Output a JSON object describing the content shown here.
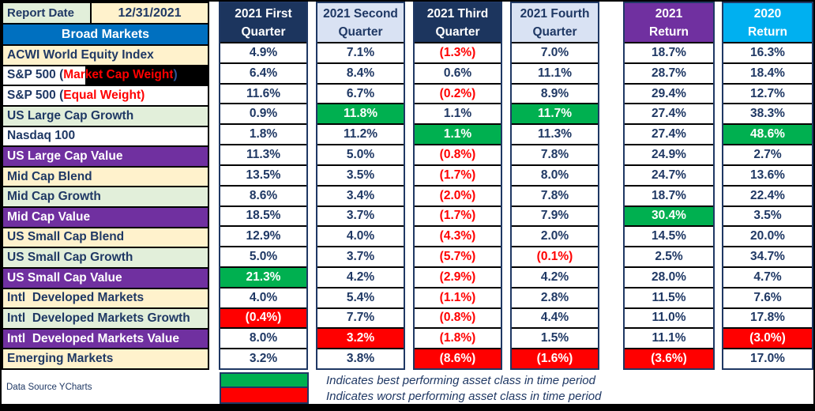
{
  "colors": {
    "text_navy": "#1F3864",
    "negative_red": "#FF0000",
    "best_green": "#00B050",
    "worst_red": "#FF0000",
    "header_navy": "#1C355E",
    "header_lightblue": "#D9E2F3",
    "purple": "#7030A0",
    "cyan": "#00B0F0",
    "section_blue": "#0070C0",
    "cream": "#FFF2CC",
    "light_green": "#E2EFDA",
    "white": "#FFFFFF",
    "black": "#000000"
  },
  "header": {
    "report_date_label": "Report Date",
    "report_date_value": "12/31/2021",
    "section_title": "Broad Markets"
  },
  "columns": [
    {
      "id": "q1-2021",
      "label": "2021 First\nQuarter",
      "style": "navy"
    },
    {
      "id": "q2-2021",
      "label": "2021 Second\nQuarter",
      "style": "lightblue"
    },
    {
      "id": "q3-2021",
      "label": "2021 Third\nQuarter",
      "style": "navy"
    },
    {
      "id": "q4-2021",
      "label": "2021 Fourth\nQuarter",
      "style": "lightblue"
    },
    {
      "id": "return-2021",
      "label": "2021\nReturn",
      "style": "purple"
    },
    {
      "id": "return-2020",
      "label": "2020\nReturn",
      "style": "cyan"
    }
  ],
  "rows": [
    {
      "row_style": "cream",
      "label": [
        {
          "text": "ACWI World Equity Index"
        }
      ],
      "cells": [
        {
          "t": "4.9%",
          "s": "n"
        },
        {
          "t": "7.1%",
          "s": "n"
        },
        {
          "t": "(1.3%)",
          "s": "neg"
        },
        {
          "t": "7.0%",
          "s": "n"
        },
        {
          "t": "18.7%",
          "s": "n"
        },
        {
          "t": "16.3%",
          "s": "n"
        }
      ]
    },
    {
      "row_style": "white",
      "label": [
        {
          "text": "S&P 500 ("
        },
        {
          "text": "Mar",
          "color": "#FF0000"
        },
        {
          "text": "ket Cap Weight",
          "color": "#FF0000",
          "bg": "#000000"
        },
        {
          "text": ")",
          "color": "#2F5597",
          "bg": "#000000",
          "fill": true
        }
      ],
      "cells": [
        {
          "t": "6.4%",
          "s": "n"
        },
        {
          "t": "8.4%",
          "s": "n"
        },
        {
          "t": "0.6%",
          "s": "n"
        },
        {
          "t": "11.1%",
          "s": "n"
        },
        {
          "t": "28.7%",
          "s": "n"
        },
        {
          "t": "18.4%",
          "s": "n"
        }
      ]
    },
    {
      "row_style": "white",
      "label": [
        {
          "text": "S&P 500 ("
        },
        {
          "text": "Equal Weight)",
          "color": "#FF0000"
        }
      ],
      "cells": [
        {
          "t": "11.6%",
          "s": "n"
        },
        {
          "t": "6.7%",
          "s": "n"
        },
        {
          "t": "(0.2%)",
          "s": "neg"
        },
        {
          "t": "8.9%",
          "s": "n"
        },
        {
          "t": "29.4%",
          "s": "n"
        },
        {
          "t": "12.7%",
          "s": "n"
        }
      ]
    },
    {
      "row_style": "green",
      "label": [
        {
          "text": "US Large Cap Growth"
        }
      ],
      "cells": [
        {
          "t": "0.9%",
          "s": "n"
        },
        {
          "t": "11.8%",
          "s": "best"
        },
        {
          "t": "1.1%",
          "s": "n"
        },
        {
          "t": "11.7%",
          "s": "best"
        },
        {
          "t": "27.4%",
          "s": "n"
        },
        {
          "t": "38.3%",
          "s": "n"
        }
      ]
    },
    {
      "row_style": "white",
      "label": [
        {
          "text": "Nasdaq 100"
        }
      ],
      "cells": [
        {
          "t": "1.8%",
          "s": "n"
        },
        {
          "t": "11.2%",
          "s": "n"
        },
        {
          "t": "1.1%",
          "s": "best"
        },
        {
          "t": "11.3%",
          "s": "n"
        },
        {
          "t": "27.4%",
          "s": "n"
        },
        {
          "t": "48.6%",
          "s": "best"
        }
      ]
    },
    {
      "row_style": "purple",
      "label": [
        {
          "text": "US Large Cap Value"
        }
      ],
      "cells": [
        {
          "t": "11.3%",
          "s": "n"
        },
        {
          "t": "5.0%",
          "s": "n"
        },
        {
          "t": "(0.8%)",
          "s": "neg"
        },
        {
          "t": "7.8%",
          "s": "n"
        },
        {
          "t": "24.9%",
          "s": "n"
        },
        {
          "t": "2.7%",
          "s": "n"
        }
      ]
    },
    {
      "row_style": "cream",
      "label": [
        {
          "text": "Mid Cap Blend"
        }
      ],
      "cells": [
        {
          "t": "13.5%",
          "s": "n"
        },
        {
          "t": "3.5%",
          "s": "n"
        },
        {
          "t": "(1.7%)",
          "s": "neg"
        },
        {
          "t": "8.0%",
          "s": "n"
        },
        {
          "t": "24.7%",
          "s": "n"
        },
        {
          "t": "13.6%",
          "s": "n"
        }
      ]
    },
    {
      "row_style": "green",
      "label": [
        {
          "text": "Mid Cap Growth"
        }
      ],
      "cells": [
        {
          "t": "8.6%",
          "s": "n"
        },
        {
          "t": "3.4%",
          "s": "n"
        },
        {
          "t": "(2.0%)",
          "s": "neg"
        },
        {
          "t": "7.8%",
          "s": "n"
        },
        {
          "t": "18.7%",
          "s": "n"
        },
        {
          "t": "22.4%",
          "s": "n"
        }
      ]
    },
    {
      "row_style": "purple",
      "label": [
        {
          "text": "Mid Cap Value"
        }
      ],
      "cells": [
        {
          "t": "18.5%",
          "s": "n"
        },
        {
          "t": "3.7%",
          "s": "n"
        },
        {
          "t": "(1.7%)",
          "s": "neg"
        },
        {
          "t": "7.9%",
          "s": "n"
        },
        {
          "t": "30.4%",
          "s": "best"
        },
        {
          "t": "3.5%",
          "s": "n"
        }
      ]
    },
    {
      "row_style": "cream",
      "label": [
        {
          "text": "US Small Cap Blend"
        }
      ],
      "cells": [
        {
          "t": "12.9%",
          "s": "n"
        },
        {
          "t": "4.0%",
          "s": "n"
        },
        {
          "t": "(4.3%)",
          "s": "neg"
        },
        {
          "t": "2.0%",
          "s": "n"
        },
        {
          "t": "14.5%",
          "s": "n"
        },
        {
          "t": "20.0%",
          "s": "n"
        }
      ]
    },
    {
      "row_style": "green",
      "label": [
        {
          "text": "US Small Cap Growth"
        }
      ],
      "cells": [
        {
          "t": "5.0%",
          "s": "n"
        },
        {
          "t": "3.7%",
          "s": "n"
        },
        {
          "t": "(5.7%)",
          "s": "neg"
        },
        {
          "t": "(0.1%)",
          "s": "neg"
        },
        {
          "t": "2.5%",
          "s": "n"
        },
        {
          "t": "34.7%",
          "s": "n"
        }
      ]
    },
    {
      "row_style": "purple",
      "label": [
        {
          "text": "US Small Cap Value"
        }
      ],
      "cells": [
        {
          "t": "21.3%",
          "s": "best"
        },
        {
          "t": "4.2%",
          "s": "n"
        },
        {
          "t": "(2.9%)",
          "s": "neg"
        },
        {
          "t": "4.2%",
          "s": "n"
        },
        {
          "t": "28.0%",
          "s": "n"
        },
        {
          "t": "4.7%",
          "s": "n"
        }
      ]
    },
    {
      "row_style": "cream",
      "label": [
        {
          "text": "Intl  Developed Markets"
        }
      ],
      "cells": [
        {
          "t": "4.0%",
          "s": "n"
        },
        {
          "t": "5.4%",
          "s": "n"
        },
        {
          "t": "(1.1%)",
          "s": "neg"
        },
        {
          "t": "2.8%",
          "s": "n"
        },
        {
          "t": "11.5%",
          "s": "n"
        },
        {
          "t": "7.6%",
          "s": "n"
        }
      ]
    },
    {
      "row_style": "green",
      "label": [
        {
          "text": "Intl  Developed Markets Growth"
        }
      ],
      "cells": [
        {
          "t": "(0.4%)",
          "s": "worst"
        },
        {
          "t": "7.7%",
          "s": "n"
        },
        {
          "t": "(0.8%)",
          "s": "neg"
        },
        {
          "t": "4.4%",
          "s": "n"
        },
        {
          "t": "11.0%",
          "s": "n"
        },
        {
          "t": "17.8%",
          "s": "n"
        }
      ]
    },
    {
      "row_style": "purple",
      "label": [
        {
          "text": "Intl  Developed Markets Value"
        }
      ],
      "cells": [
        {
          "t": "8.0%",
          "s": "n"
        },
        {
          "t": "3.2%",
          "s": "worst"
        },
        {
          "t": "(1.8%)",
          "s": "neg"
        },
        {
          "t": "1.5%",
          "s": "n"
        },
        {
          "t": "11.1%",
          "s": "n"
        },
        {
          "t": "(3.0%)",
          "s": "worst"
        }
      ]
    },
    {
      "row_style": "cream",
      "label": [
        {
          "text": "Emerging Markets"
        }
      ],
      "cells": [
        {
          "t": "3.2%",
          "s": "n"
        },
        {
          "t": "3.8%",
          "s": "n"
        },
        {
          "t": "(8.6%)",
          "s": "worst"
        },
        {
          "t": "(1.6%)",
          "s": "worst"
        },
        {
          "t": "(3.6%)",
          "s": "worst"
        },
        {
          "t": "17.0%",
          "s": "n"
        }
      ]
    }
  ],
  "footer": {
    "source": "Data Source YCharts",
    "legend": [
      {
        "name": "best-performer",
        "swatch": "#00B050",
        "text": "Indicates best performing asset class in time period"
      },
      {
        "name": "worst-performer",
        "swatch": "#FF0000",
        "text": "Indicates worst performing asset class in time period"
      }
    ]
  }
}
